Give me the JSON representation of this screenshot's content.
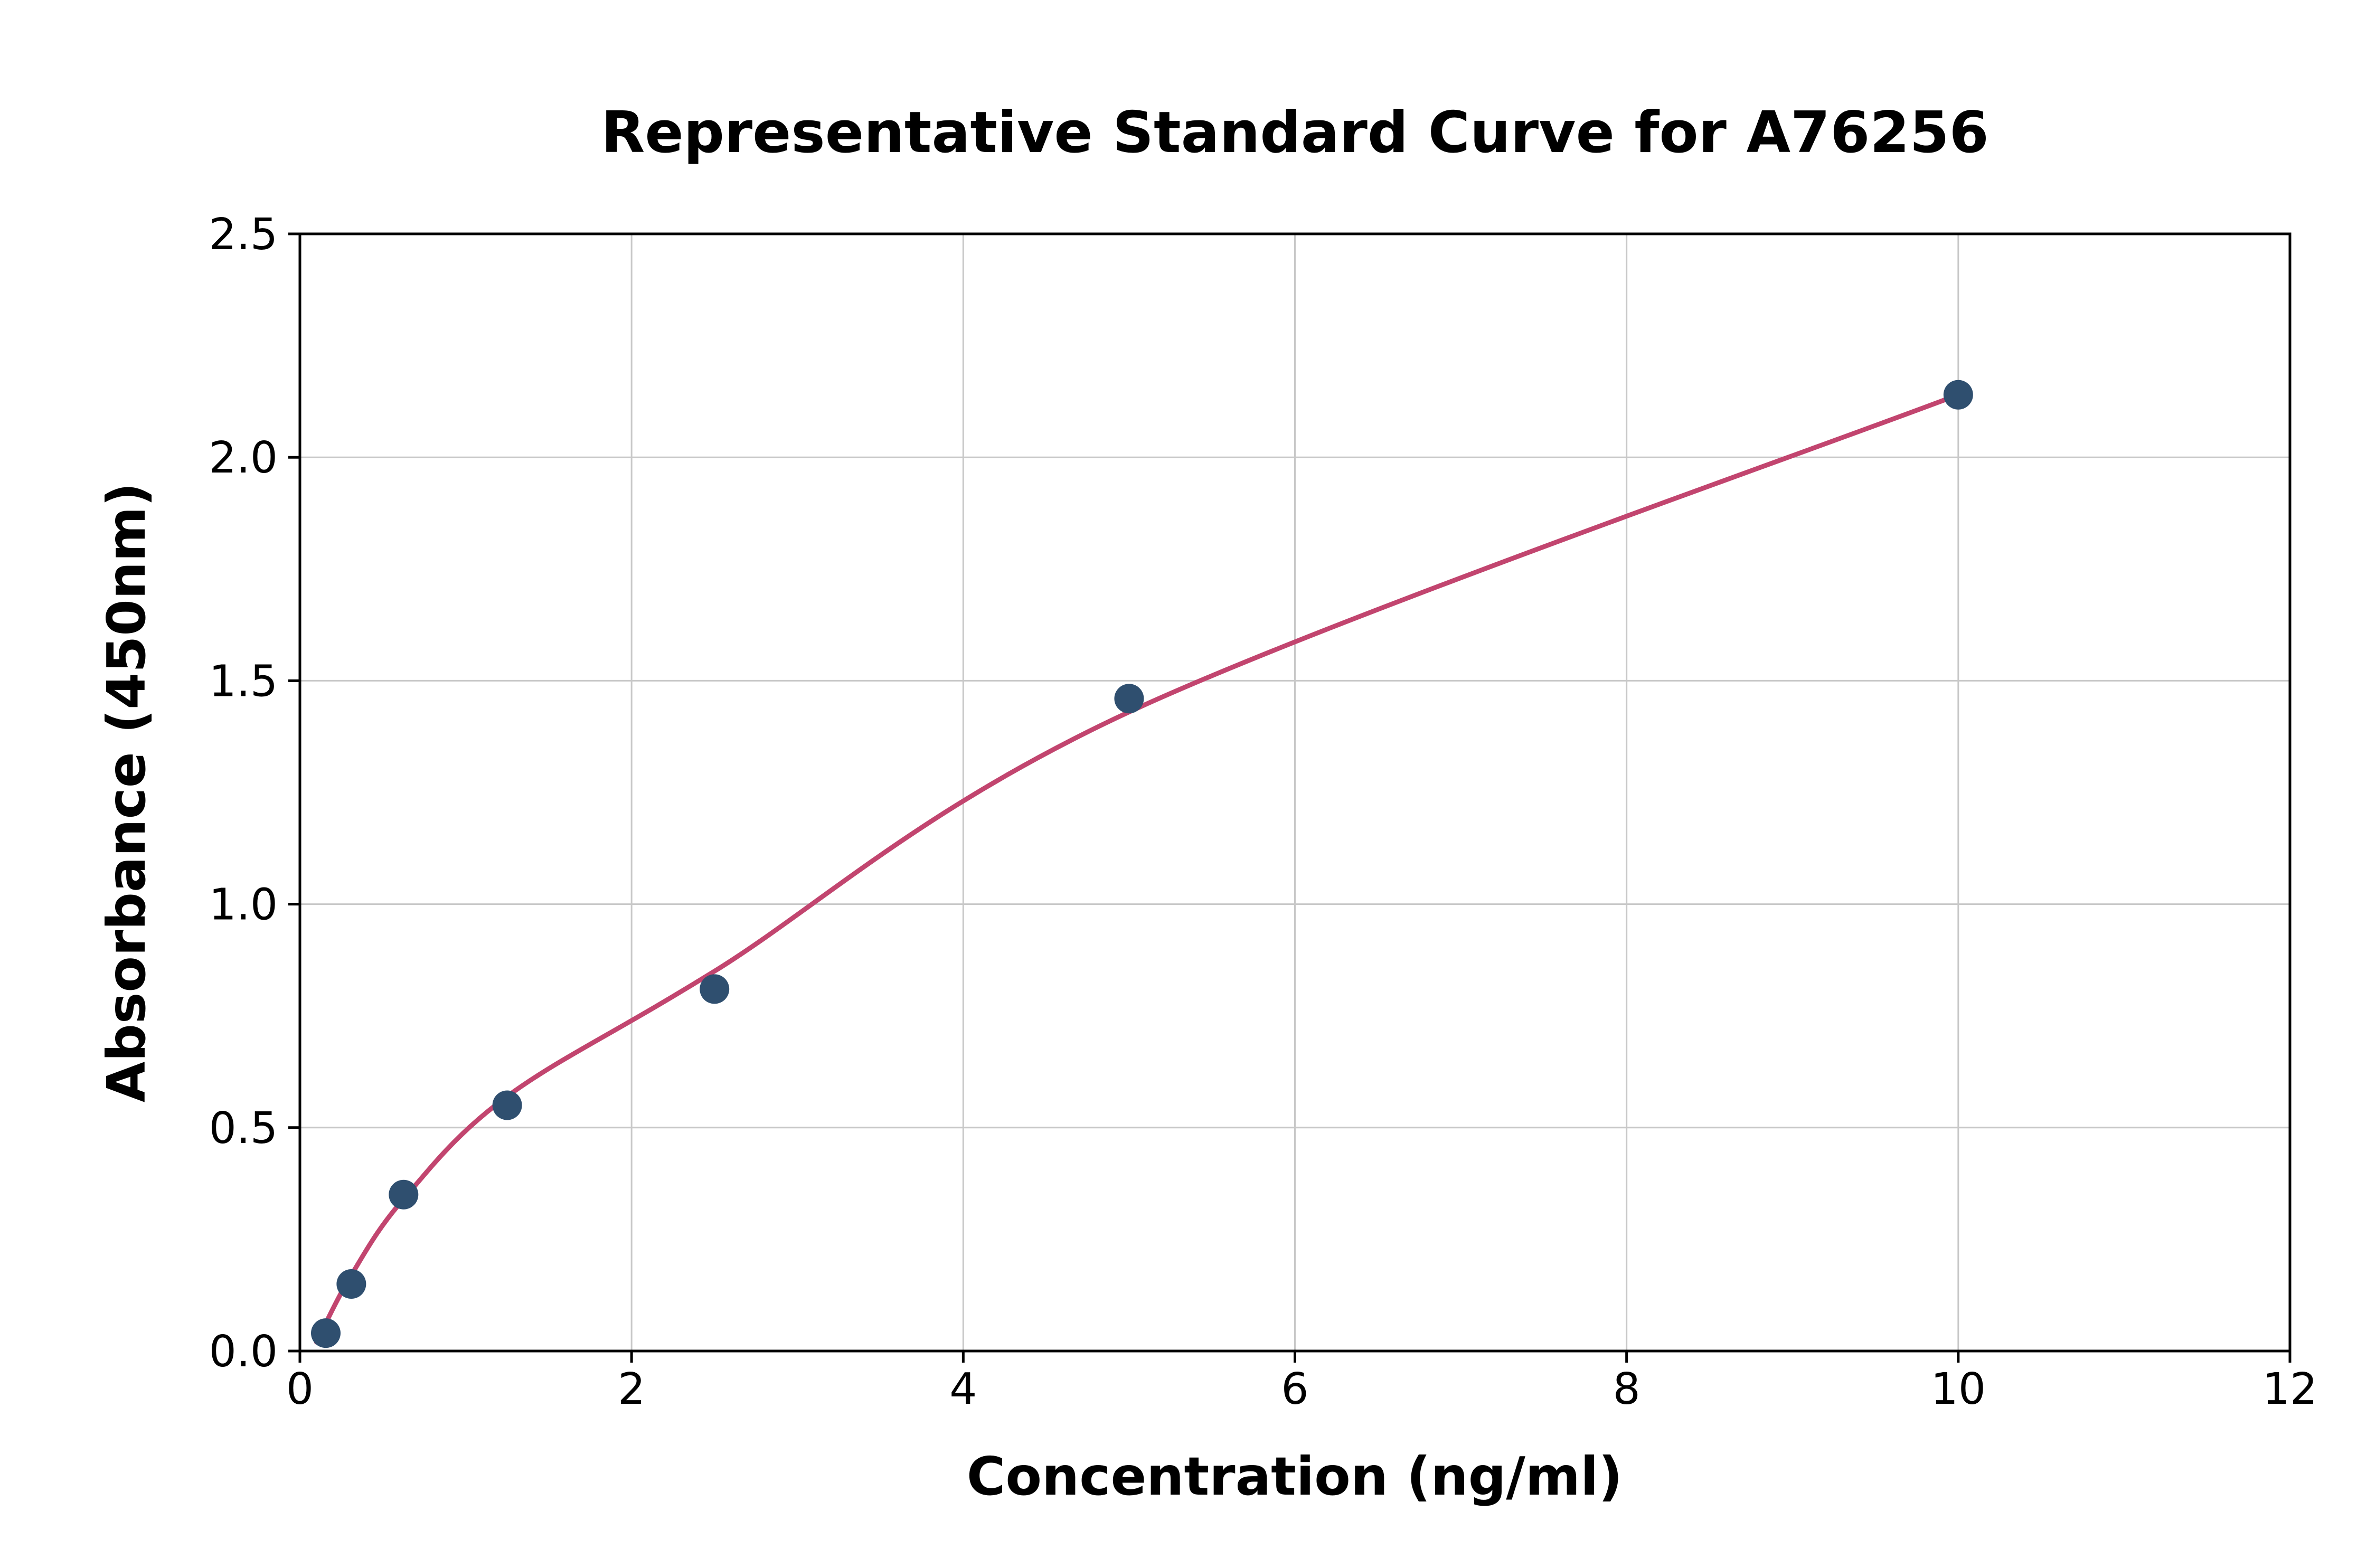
{
  "chart_data": {
    "type": "scatter",
    "title": "Representative Standard Curve for A76256",
    "xlabel": "Concentration (ng/ml)",
    "ylabel": "Absorbance (450nm)",
    "xlim": [
      0,
      12
    ],
    "ylim": [
      0,
      2.5
    ],
    "xticks": [
      0,
      2,
      4,
      6,
      8,
      10,
      12
    ],
    "xtick_labels": [
      "0",
      "2",
      "4",
      "6",
      "8",
      "10",
      "12"
    ],
    "yticks": [
      0,
      0.5,
      1.0,
      1.5,
      2.0,
      2.5
    ],
    "ytick_labels": [
      "0.0",
      "0.5",
      "1.0",
      "1.5",
      "2.0",
      "2.5"
    ],
    "grid": true,
    "legend": "none",
    "points": [
      [
        0.156,
        0.04
      ],
      [
        0.31,
        0.15
      ],
      [
        0.625,
        0.35
      ],
      [
        1.25,
        0.55
      ],
      [
        2.5,
        0.81
      ],
      [
        5,
        1.46
      ],
      [
        10,
        2.14
      ]
    ],
    "fit_curve": [
      [
        0.1,
        0.02
      ],
      [
        0.31,
        0.17
      ],
      [
        0.625,
        0.34
      ],
      [
        1.25,
        0.57
      ],
      [
        2.5,
        0.85
      ],
      [
        5,
        1.43
      ],
      [
        10,
        2.14
      ]
    ],
    "colors": {
      "points": "#2f4f6f",
      "curve": "#c2456f",
      "grid": "#c8c8c8",
      "axis": "#000000",
      "background": "#ffffff"
    }
  }
}
